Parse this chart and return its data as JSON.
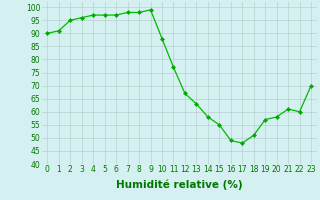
{
  "data_x": [
    0,
    1,
    2,
    3,
    4,
    5,
    6,
    7,
    8,
    9,
    10,
    11,
    12,
    13,
    14,
    15,
    16,
    17,
    18,
    19,
    20,
    21,
    22,
    23
  ],
  "data_y": [
    90,
    91,
    95,
    96,
    97,
    97,
    97,
    98,
    98,
    99,
    88,
    77,
    67,
    63,
    58,
    55,
    49,
    48,
    51,
    57,
    58,
    61,
    60,
    70
  ],
  "line_color": "#00bb00",
  "marker_color": "#00aa00",
  "bg_color": "#d5f0f0",
  "grid_color": "#b0c8c8",
  "xlabel": "Humidité relative (%)",
  "xlabel_color": "#007700",
  "ylim": [
    40,
    102
  ],
  "yticks": [
    40,
    45,
    50,
    55,
    60,
    65,
    70,
    75,
    80,
    85,
    90,
    95,
    100
  ],
  "xticks": [
    0,
    1,
    2,
    3,
    4,
    5,
    6,
    7,
    8,
    9,
    10,
    11,
    12,
    13,
    14,
    15,
    16,
    17,
    18,
    19,
    20,
    21,
    22,
    23
  ],
  "tick_label_color": "#007700",
  "tick_label_fontsize": 5.5,
  "xlabel_fontsize": 7.5,
  "xlabel_fontweight": "bold"
}
